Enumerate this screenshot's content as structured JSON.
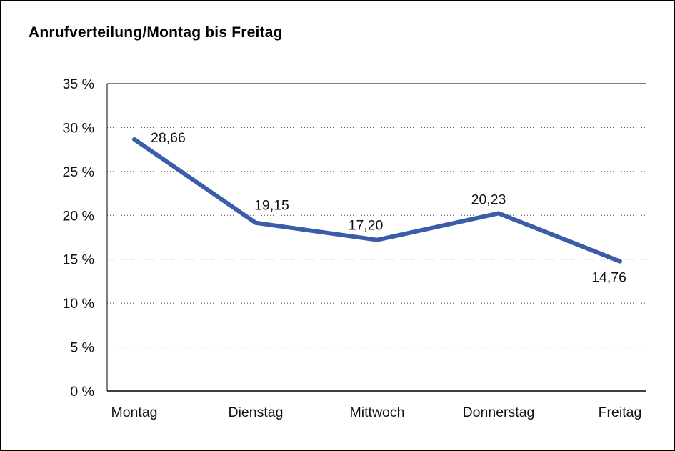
{
  "chart": {
    "title": "Anrufverteilung/Montag bis Freitag"
  },
  "chart_data": {
    "type": "line",
    "title": "Anrufverteilung/Montag bis Freitag",
    "categories": [
      "Montag",
      "Dienstag",
      "Mittwoch",
      "Donnerstag",
      "Freitag"
    ],
    "values": [
      28.66,
      19.15,
      17.2,
      20.23,
      14.76
    ],
    "value_labels": [
      "28,66",
      "19,15",
      "17,20",
      "20,23",
      "14,76"
    ],
    "xlabel": "",
    "ylabel": "",
    "ylim": [
      0,
      35
    ],
    "y_ticks": [
      0,
      5,
      10,
      15,
      20,
      25,
      30,
      35
    ],
    "y_tick_labels": [
      "0 %",
      "5 %",
      "10 %",
      "15 %",
      "20 %",
      "25 %",
      "30 %",
      "35 %"
    ],
    "grid": "dotted-horizontal",
    "legend": "none",
    "line_color": "#3B5CA8",
    "axis_color": "#000000",
    "label_color": "#111111"
  }
}
